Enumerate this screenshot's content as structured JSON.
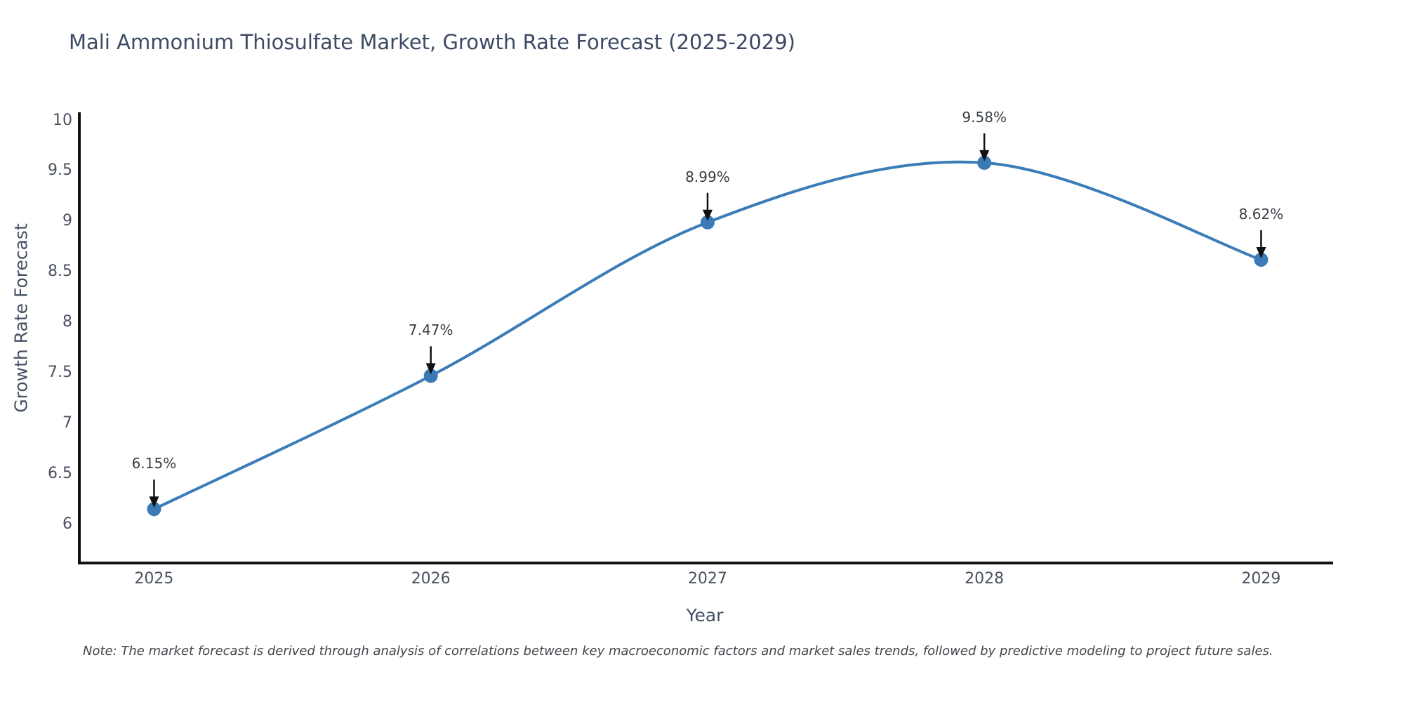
{
  "note": "Note: The market forecast is derived through analysis of correlations between key macroeconomic factors and market sales trends, followed by predictive modeling to project future sales.",
  "chart_data": {
    "type": "line",
    "title": "Mali Ammonium Thiosulfate Market, Growth Rate Forecast (2025-2029)",
    "xlabel": "Year",
    "ylabel": "Growth Rate Forecast",
    "categories": [
      2025,
      2026,
      2027,
      2028,
      2029
    ],
    "xtick_labels": [
      "2025",
      "2026",
      "2027",
      "2028",
      "2029"
    ],
    "values": [
      6.15,
      7.47,
      8.99,
      9.58,
      8.62
    ],
    "point_labels": [
      "6.15%",
      "7.47%",
      "8.99%",
      "9.58%",
      "8.62%"
    ],
    "yticks": [
      6,
      6.5,
      7,
      7.5,
      8,
      8.5,
      9,
      9.5,
      10
    ],
    "ytick_labels": [
      "6",
      "6.5",
      "7",
      "7.5",
      "8",
      "8.5",
      "9",
      "9.5",
      "10"
    ],
    "xlim": [
      2024.73,
      2029.25
    ],
    "ylim": [
      5.63,
      10.08
    ],
    "grid": false,
    "legend_position": "none",
    "line_shape": "spline",
    "line_width": 4,
    "marker_radius": 10
  },
  "colors": {
    "line": "#3c7cb8",
    "marker": "#3b7ab6",
    "axis_spine": "#111111",
    "arrow": "#111111",
    "title_text": "#3d4a63",
    "axis_title_text": "#445063",
    "tick_text": "#4a5260",
    "annotation_text": "#383e45",
    "note_text": "#41464b",
    "background": "#ffffff"
  }
}
